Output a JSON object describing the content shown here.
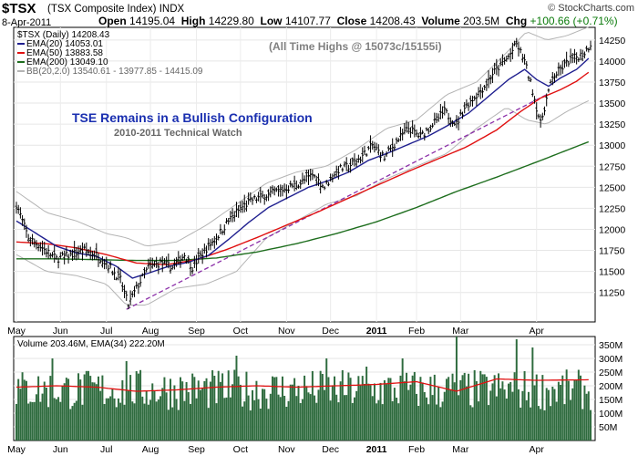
{
  "header": {
    "symbol": "$TSX",
    "name": "(TSX Composite Index)",
    "exchange": "INDX",
    "date": "8-Apr-2011",
    "open_label": "Open",
    "open": "14195.04",
    "high_label": "High",
    "high": "14229.80",
    "low_label": "Low",
    "low": "14107.77",
    "close_label": "Close",
    "close": "14208.43",
    "volume_label": "Volume",
    "volume": "203.5M",
    "chg_label": "Chg",
    "chg": "+100.66 (+0.71%)",
    "credit": "© StockCharts.com"
  },
  "legend": {
    "price": "$TSX (Daily) 14208.43",
    "ema20": "EMA(20) 14053.01",
    "ema50": "EMA(50) 13883.58",
    "ema200": "EMA(200) 13049.10",
    "bb": "BB(20,2.0) 13540.61 - 13977.85 - 14415.09",
    "volume": "Volume 203.46M, EMA(34) 222.20M"
  },
  "annotations": {
    "ath": "(All Time Highs @ 15073c/15155i)",
    "title": "TSE Remains in a Bullish Configuration",
    "subtitle": "2010-2011 Technical Watch"
  },
  "colors": {
    "price_bar": "#000000",
    "ema20": "#1f1f8f",
    "ema50": "#e01010",
    "ema200": "#1e6e1e",
    "bb": "#b4b4b4",
    "trendline": "#8b2fa8",
    "volume_bar": "#2e6b3e",
    "volume_ema": "#e01010",
    "title": "#1a2fb0"
  },
  "chart_data": [
    {
      "type": "line",
      "title": "$TSX (Daily) price with EMA(20), EMA(50), EMA(200), BB(20,2.0)",
      "x_months": [
        "May",
        "Jun",
        "Jul",
        "Aug",
        "Sep",
        "Oct",
        "Nov",
        "Dec",
        "2011",
        "Feb",
        "Mar",
        "Apr"
      ],
      "ylim": [
        10900,
        14400
      ],
      "yticks": [
        11250,
        11500,
        11750,
        12000,
        12250,
        12500,
        12750,
        13000,
        13250,
        13500,
        13750,
        14000,
        14250
      ],
      "price_path": [
        [
          0,
          12300
        ],
        [
          6,
          11900
        ],
        [
          12,
          11800
        ],
        [
          20,
          11650
        ],
        [
          27,
          11700
        ],
        [
          34,
          11750
        ],
        [
          40,
          11700
        ],
        [
          45,
          11600
        ],
        [
          52,
          11400
        ],
        [
          56,
          11100
        ],
        [
          60,
          11300
        ],
        [
          66,
          11550
        ],
        [
          72,
          11600
        ],
        [
          78,
          11550
        ],
        [
          84,
          11700
        ],
        [
          88,
          11550
        ],
        [
          94,
          11750
        ],
        [
          100,
          11900
        ],
        [
          106,
          12100
        ],
        [
          112,
          12250
        ],
        [
          118,
          12350
        ],
        [
          124,
          12400
        ],
        [
          130,
          12450
        ],
        [
          136,
          12500
        ],
        [
          142,
          12550
        ],
        [
          148,
          12650
        ],
        [
          154,
          12500
        ],
        [
          160,
          12700
        ],
        [
          166,
          12750
        ],
        [
          172,
          12850
        ],
        [
          178,
          13000
        ],
        [
          184,
          12850
        ],
        [
          190,
          13050
        ],
        [
          196,
          13200
        ],
        [
          202,
          13100
        ],
        [
          208,
          13250
        ],
        [
          214,
          13400
        ],
        [
          220,
          13250
        ],
        [
          224,
          13450
        ],
        [
          228,
          13550
        ],
        [
          234,
          13700
        ],
        [
          238,
          13850
        ],
        [
          242,
          13950
        ],
        [
          246,
          14050
        ],
        [
          250,
          14200
        ],
        [
          254,
          14000
        ],
        [
          258,
          13650
        ],
        [
          262,
          13250
        ],
        [
          265,
          13550
        ],
        [
          268,
          13800
        ],
        [
          272,
          13900
        ],
        [
          276,
          14000
        ],
        [
          280,
          14050
        ],
        [
          284,
          14100
        ],
        [
          287,
          14208
        ]
      ],
      "ema20": [
        [
          0,
          12100
        ],
        [
          10,
          11950
        ],
        [
          20,
          11800
        ],
        [
          30,
          11720
        ],
        [
          40,
          11680
        ],
        [
          50,
          11560
        ],
        [
          58,
          11420
        ],
        [
          66,
          11480
        ],
        [
          76,
          11560
        ],
        [
          86,
          11610
        ],
        [
          96,
          11690
        ],
        [
          106,
          11880
        ],
        [
          116,
          12080
        ],
        [
          126,
          12260
        ],
        [
          136,
          12380
        ],
        [
          146,
          12500
        ],
        [
          156,
          12580
        ],
        [
          166,
          12680
        ],
        [
          176,
          12820
        ],
        [
          186,
          12910
        ],
        [
          196,
          13010
        ],
        [
          206,
          13110
        ],
        [
          216,
          13240
        ],
        [
          226,
          13380
        ],
        [
          236,
          13580
        ],
        [
          246,
          13780
        ],
        [
          254,
          13900
        ],
        [
          260,
          13780
        ],
        [
          266,
          13700
        ],
        [
          272,
          13800
        ],
        [
          280,
          13900
        ],
        [
          287,
          14053
        ]
      ],
      "ema50": [
        [
          0,
          11850
        ],
        [
          15,
          11830
        ],
        [
          30,
          11780
        ],
        [
          45,
          11700
        ],
        [
          60,
          11600
        ],
        [
          75,
          11580
        ],
        [
          90,
          11640
        ],
        [
          105,
          11760
        ],
        [
          120,
          11900
        ],
        [
          135,
          12050
        ],
        [
          150,
          12200
        ],
        [
          165,
          12360
        ],
        [
          180,
          12520
        ],
        [
          195,
          12680
        ],
        [
          210,
          12830
        ],
        [
          225,
          12980
        ],
        [
          240,
          13180
        ],
        [
          252,
          13400
        ],
        [
          262,
          13560
        ],
        [
          272,
          13660
        ],
        [
          280,
          13760
        ],
        [
          287,
          13884
        ]
      ],
      "ema200": [
        [
          0,
          11650
        ],
        [
          20,
          11650
        ],
        [
          40,
          11640
        ],
        [
          60,
          11630
        ],
        [
          80,
          11630
        ],
        [
          100,
          11660
        ],
        [
          120,
          11730
        ],
        [
          140,
          11830
        ],
        [
          160,
          11950
        ],
        [
          180,
          12090
        ],
        [
          200,
          12260
        ],
        [
          220,
          12450
        ],
        [
          240,
          12620
        ],
        [
          260,
          12800
        ],
        [
          287,
          13049
        ]
      ],
      "bb_upper": [
        [
          0,
          12450
        ],
        [
          15,
          12200
        ],
        [
          30,
          12100
        ],
        [
          45,
          11950
        ],
        [
          55,
          11900
        ],
        [
          65,
          11800
        ],
        [
          80,
          11850
        ],
        [
          95,
          12050
        ],
        [
          110,
          12300
        ],
        [
          125,
          12550
        ],
        [
          140,
          12680
        ],
        [
          155,
          12750
        ],
        [
          170,
          12950
        ],
        [
          185,
          13200
        ],
        [
          200,
          13300
        ],
        [
          215,
          13600
        ],
        [
          230,
          13750
        ],
        [
          245,
          14100
        ],
        [
          255,
          14350
        ],
        [
          265,
          14250
        ],
        [
          275,
          14300
        ],
        [
          287,
          14415
        ]
      ],
      "bb_lower": [
        [
          0,
          11700
        ],
        [
          15,
          11500
        ],
        [
          30,
          11450
        ],
        [
          45,
          11350
        ],
        [
          55,
          11100
        ],
        [
          65,
          11100
        ],
        [
          80,
          11300
        ],
        [
          95,
          11350
        ],
        [
          110,
          11500
        ],
        [
          125,
          11900
        ],
        [
          140,
          12100
        ],
        [
          155,
          12300
        ],
        [
          170,
          12400
        ],
        [
          185,
          12600
        ],
        [
          200,
          12750
        ],
        [
          215,
          12900
        ],
        [
          230,
          13200
        ],
        [
          245,
          13450
        ],
        [
          255,
          13300
        ],
        [
          265,
          13250
        ],
        [
          275,
          13400
        ],
        [
          287,
          13541
        ]
      ],
      "trendline": [
        [
          55,
          11050
        ],
        [
          265,
          13600
        ]
      ]
    },
    {
      "type": "bar",
      "title": "Volume 203.46M, EMA(34) 222.20M",
      "ylim": [
        0,
        380
      ],
      "yticks_label": [
        "50M",
        "100M",
        "150M",
        "200M",
        "250M",
        "300M",
        "350M"
      ],
      "yticks": [
        50,
        100,
        150,
        200,
        250,
        300,
        350
      ],
      "volume_ema": [
        [
          0,
          195
        ],
        [
          20,
          200
        ],
        [
          40,
          195
        ],
        [
          60,
          180
        ],
        [
          80,
          185
        ],
        [
          100,
          195
        ],
        [
          120,
          200
        ],
        [
          140,
          195
        ],
        [
          160,
          200
        ],
        [
          180,
          205
        ],
        [
          200,
          215
        ],
        [
          220,
          180
        ],
        [
          240,
          225
        ],
        [
          260,
          220
        ],
        [
          287,
          222
        ]
      ],
      "volume_base": 200,
      "volume_spikes": [
        [
          18,
          300
        ],
        [
          55,
          290
        ],
        [
          110,
          310
        ],
        [
          155,
          300
        ],
        [
          175,
          270
        ],
        [
          193,
          300
        ],
        [
          220,
          380
        ],
        [
          250,
          370
        ],
        [
          258,
          340
        ]
      ]
    }
  ]
}
